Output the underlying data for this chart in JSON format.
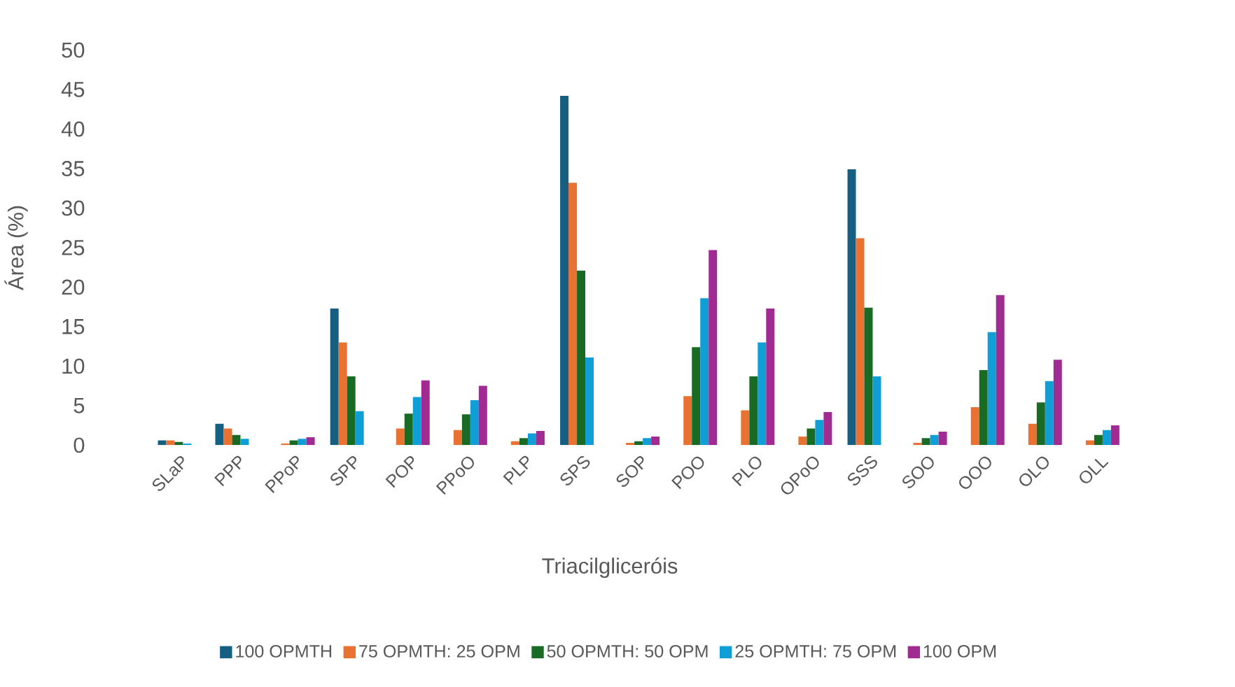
{
  "chart_data": {
    "type": "bar",
    "xlabel": "Triacilgliceróis",
    "ylabel": "Área (%)",
    "categories": [
      "SLaP",
      "PPP",
      "PPoP",
      "SPP",
      "POP",
      "PPoO",
      "PLP",
      "SPS",
      "SOP",
      "POO",
      "PLO",
      "OPoO",
      "SSS",
      "SOO",
      "OOO",
      "OLO",
      "OLL"
    ],
    "ylim": [
      0,
      50
    ],
    "yticks": [
      0,
      5,
      10,
      15,
      20,
      25,
      30,
      35,
      40,
      45,
      50
    ],
    "grid": false,
    "legend": "bottom",
    "series": [
      {
        "name": "100 OPMTH",
        "color": "#156082",
        "values": [
          0.6,
          2.7,
          null,
          17.3,
          null,
          null,
          null,
          44.2,
          null,
          null,
          null,
          null,
          34.9,
          null,
          null,
          null,
          null
        ]
      },
      {
        "name": "75 OPMTH: 25 OPM",
        "color": "#e97132",
        "values": [
          0.6,
          2.1,
          0.2,
          13.0,
          2.1,
          1.9,
          0.5,
          33.2,
          0.3,
          6.2,
          4.4,
          1.1,
          26.2,
          0.3,
          4.8,
          2.7,
          0.6
        ]
      },
      {
        "name": "50 OPMTH: 50 OPM",
        "color": "#196b24",
        "values": [
          0.4,
          1.3,
          0.6,
          8.7,
          4.0,
          3.9,
          0.9,
          22.1,
          0.5,
          12.4,
          8.7,
          2.1,
          17.4,
          0.9,
          9.5,
          5.4,
          1.3
        ]
      },
      {
        "name": "25 OPMTH: 75 OPM",
        "color": "#0f9ed5",
        "values": [
          0.2,
          0.8,
          0.8,
          4.3,
          6.1,
          5.7,
          1.5,
          11.1,
          0.9,
          18.6,
          13.0,
          3.2,
          8.7,
          1.3,
          14.3,
          8.1,
          1.9
        ]
      },
      {
        "name": "100 OPM",
        "color": "#a02b93",
        "values": [
          null,
          null,
          1.0,
          null,
          8.2,
          7.5,
          1.8,
          null,
          1.1,
          24.7,
          17.3,
          4.2,
          null,
          1.7,
          19.0,
          10.8,
          2.5
        ]
      }
    ]
  }
}
